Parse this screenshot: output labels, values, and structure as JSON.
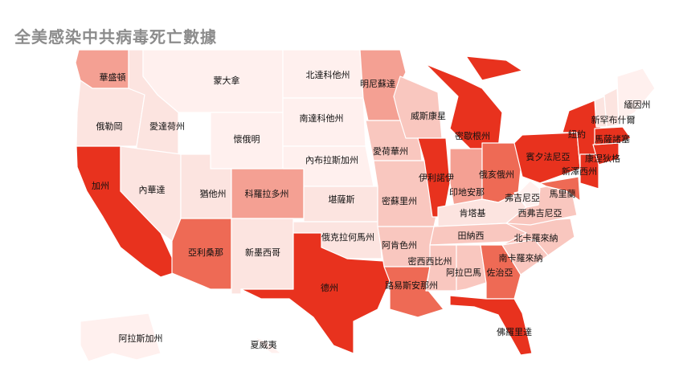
{
  "title": "全美感染中共病毒死亡數據",
  "colors": {
    "c0": "#fff0ee",
    "c1": "#fce4e0",
    "c2": "#f9c7bf",
    "c3": "#f4a093",
    "c4": "#ee6a55",
    "c5": "#e8321e"
  },
  "states": [
    {
      "id": "washington",
      "name": "華盛頓",
      "level": 3
    },
    {
      "id": "oregon",
      "name": "俄勒岡",
      "level": 1
    },
    {
      "id": "california",
      "name": "加州",
      "level": 5
    },
    {
      "id": "idaho",
      "name": "愛達荷州",
      "level": 1
    },
    {
      "id": "nevada",
      "name": "內華達",
      "level": 1
    },
    {
      "id": "montana",
      "name": "蒙大拿",
      "level": 0
    },
    {
      "id": "wyoming",
      "name": "懷俄明",
      "level": 0
    },
    {
      "id": "utah",
      "name": "猶他州",
      "level": 1
    },
    {
      "id": "arizona",
      "name": "亞利桑那",
      "level": 4
    },
    {
      "id": "colorado",
      "name": "科羅拉多州",
      "level": 3
    },
    {
      "id": "newmexico",
      "name": "新墨西哥",
      "level": 1
    },
    {
      "id": "northdakota",
      "name": "北達科他州",
      "level": 0
    },
    {
      "id": "southdakota",
      "name": "南達科他州",
      "level": 0
    },
    {
      "id": "nebraska",
      "name": "內布拉斯加州",
      "level": 0
    },
    {
      "id": "kansas",
      "name": "堪薩斯",
      "level": 1
    },
    {
      "id": "oklahoma",
      "name": "俄克拉何馬州",
      "level": 1
    },
    {
      "id": "texas",
      "name": "德州",
      "level": 5
    },
    {
      "id": "minnesota",
      "name": "明尼蘇達",
      "level": 3
    },
    {
      "id": "iowa",
      "name": "愛荷華州",
      "level": 2
    },
    {
      "id": "missouri",
      "name": "密蘇里州",
      "level": 2
    },
    {
      "id": "arkansas",
      "name": "阿肯色州",
      "level": 2
    },
    {
      "id": "louisiana",
      "name": "路易斯安那州",
      "level": 4
    },
    {
      "id": "wisconsin",
      "name": "威斯康星",
      "level": 2
    },
    {
      "id": "illinois",
      "name": "伊利諾伊",
      "level": 5
    },
    {
      "id": "michigan",
      "name": "密歇根州",
      "level": 5
    },
    {
      "id": "indiana",
      "name": "印地安那",
      "level": 3
    },
    {
      "id": "ohio",
      "name": "俄亥俄州",
      "level": 4
    },
    {
      "id": "kentucky",
      "name": "肯塔基",
      "level": 1
    },
    {
      "id": "tennessee",
      "name": "田納西",
      "level": 2
    },
    {
      "id": "mississippi",
      "name": "密西西比州",
      "level": 2
    },
    {
      "id": "alabama",
      "name": "阿拉巴馬",
      "level": 2
    },
    {
      "id": "georgia",
      "name": "佐治亞",
      "level": 4
    },
    {
      "id": "florida",
      "name": "佛羅里達",
      "level": 5
    },
    {
      "id": "southcarolina",
      "name": "南卡羅來納",
      "level": 2
    },
    {
      "id": "northcarolina",
      "name": "北卡羅來納",
      "level": 2
    },
    {
      "id": "virginia",
      "name": "弗吉尼亞",
      "level": 2
    },
    {
      "id": "westvirginia",
      "name": "西弗吉尼亞",
      "level": 0
    },
    {
      "id": "maryland",
      "name": "馬里蘭",
      "level": 4
    },
    {
      "id": "pennsylvania",
      "name": "賓夕法尼亞",
      "level": 5
    },
    {
      "id": "newyork",
      "name": "紐約",
      "level": 5
    },
    {
      "id": "newjersey",
      "name": "新澤西州",
      "level": 5
    },
    {
      "id": "connecticut",
      "name": "康涅狄格",
      "level": 5
    },
    {
      "id": "massachusetts",
      "name": "",
      "level": 5
    },
    {
      "id": "vermont",
      "name": "",
      "level": 1
    },
    {
      "id": "newhampshire",
      "name": "新罕布什爾",
      "level": 1
    },
    {
      "id": "maine",
      "name": "緬因州",
      "level": 0
    },
    {
      "id": "massachusetts_label",
      "name": "馬薩諸塞",
      "level": 5
    },
    {
      "id": "alaska",
      "name": "阿拉斯加州",
      "level": 0
    },
    {
      "id": "hawaii",
      "name": "夏威夷",
      "level": 0
    }
  ]
}
